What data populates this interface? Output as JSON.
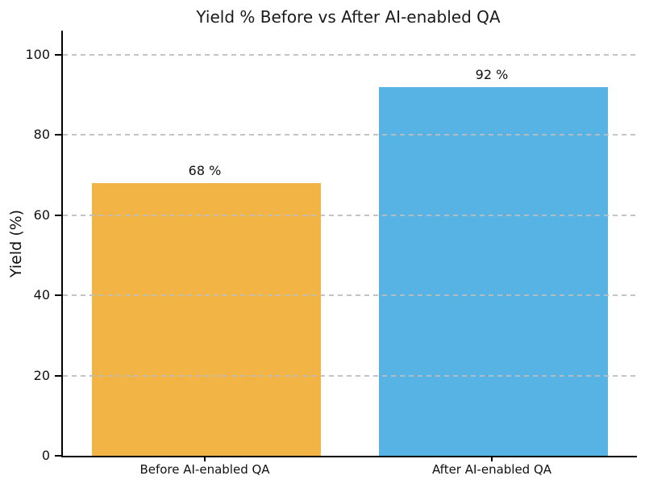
{
  "chart_data": {
    "type": "bar",
    "title": "Yield % Before vs After AI-enabled QA",
    "categories": [
      "Before AI-enabled QA",
      "After AI-enabled QA"
    ],
    "values": [
      68,
      92
    ],
    "bar_labels": [
      "68 %",
      "92 %"
    ],
    "colors": [
      "#F2B445",
      "#56B3E4"
    ],
    "xlabel": "",
    "ylabel": "Yield (%)",
    "ylim": [
      0,
      106
    ],
    "yticks": [
      0,
      20,
      40,
      60,
      80,
      100
    ],
    "grid": {
      "axis": "y",
      "style": "dashed",
      "color": "#cccccc",
      "drawn_on_top_of_bars": true
    },
    "legend": "none",
    "spines": {
      "left": true,
      "bottom": true,
      "top": false,
      "right": false
    }
  }
}
